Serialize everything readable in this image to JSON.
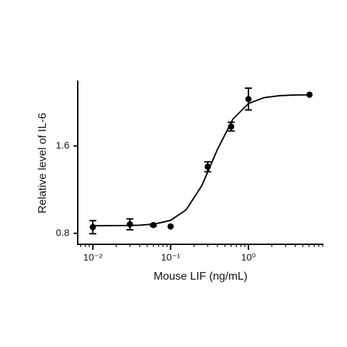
{
  "chart_data": {
    "type": "scatter",
    "x_label": "Mouse LIF (ng/mL)",
    "y_label": "Relative level of IL-6",
    "xscale": "log",
    "xlim": [
      0.0064,
      9.2
    ],
    "ylim": [
      0.7,
      2.2
    ],
    "xticks": [
      {
        "value": 0.01,
        "label": "10⁻²"
      },
      {
        "value": 0.1,
        "label": "10⁻¹"
      },
      {
        "value": 1,
        "label": "10⁰"
      }
    ],
    "xminorticks": [
      0.007,
      0.008,
      0.009,
      0.02,
      0.03,
      0.04,
      0.05,
      0.06,
      0.07,
      0.08,
      0.09,
      0.2,
      0.3,
      0.4,
      0.5,
      0.6,
      0.7,
      0.8,
      0.9,
      2,
      3,
      4,
      5,
      6,
      7,
      8,
      9
    ],
    "yticks": [
      0.8,
      1.6
    ],
    "color": "#000000",
    "points": {
      "x": [
        0.01,
        0.03,
        0.06,
        0.1,
        0.3,
        0.6,
        1,
        6.1
      ],
      "values": [
        0.857,
        0.883,
        0.876,
        0.863,
        1.41,
        1.778,
        2.03,
        2.07
      ],
      "errors": [
        0.06,
        0.05,
        0.01,
        null,
        0.045,
        0.04,
        0.1,
        null
      ]
    },
    "fit": {
      "x": [
        0.01,
        0.0158,
        0.0251,
        0.0398,
        0.0631,
        0.1,
        0.158,
        0.251,
        0.398,
        0.631,
        1,
        1.585,
        2.512,
        3.981,
        6.31
      ],
      "values": [
        0.87,
        0.871,
        0.872,
        0.875,
        0.886,
        0.92,
        1.015,
        1.235,
        1.566,
        1.846,
        1.989,
        2.043,
        2.061,
        2.067,
        2.069
      ]
    }
  }
}
